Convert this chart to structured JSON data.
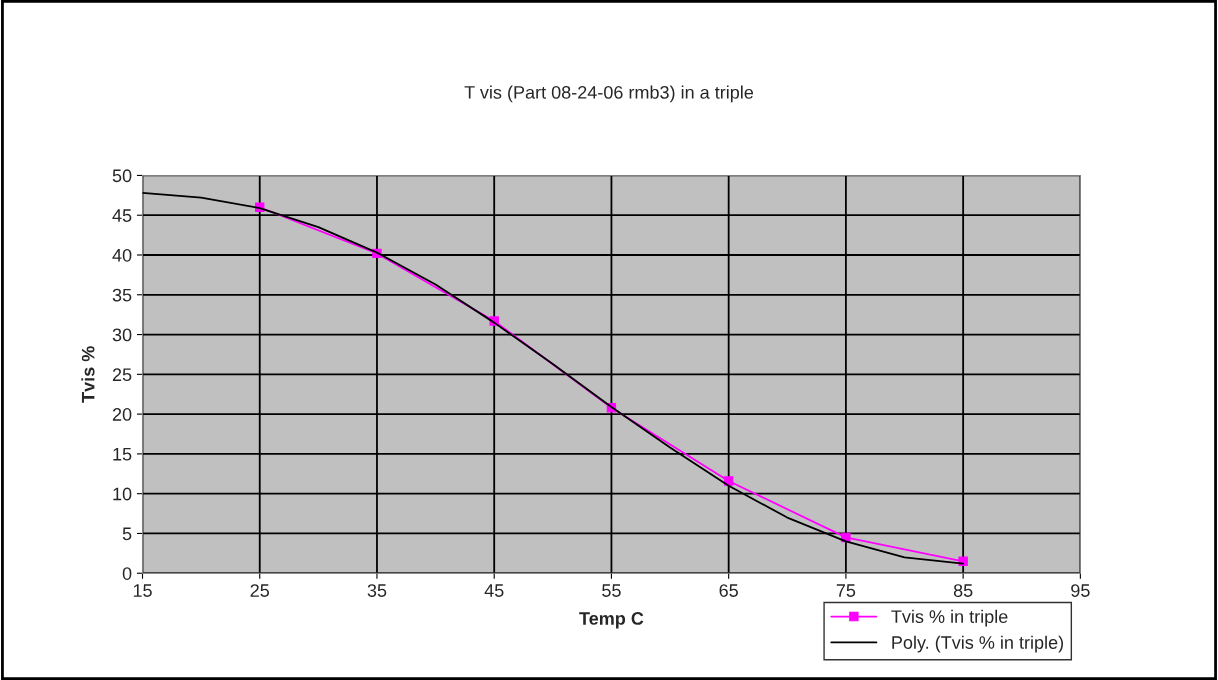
{
  "chart_data": {
    "type": "line",
    "title": "T vis (Part 08-24-06 rmb3) in a triple",
    "xlabel": "Temp C",
    "ylabel": "Tvis %",
    "series": [
      {
        "name": "Tvis % in triple",
        "color": "#ff00ff",
        "marker": "square",
        "x": [
          25,
          35,
          45,
          55,
          65,
          75,
          85
        ],
        "values": [
          46.0,
          40.2,
          31.7,
          20.8,
          11.6,
          4.5,
          1.5
        ]
      },
      {
        "name": "Poly. (Tvis % in triple)",
        "color": "#000000",
        "marker": "none",
        "x": [
          15,
          20,
          25,
          30,
          35,
          40,
          45,
          50,
          55,
          60,
          65,
          70,
          75,
          80,
          85
        ],
        "values": [
          47.8,
          47.2,
          45.9,
          43.5,
          40.3,
          36.3,
          31.5,
          26.3,
          20.9,
          15.8,
          11.0,
          7.0,
          4.0,
          2.0,
          1.2
        ]
      }
    ],
    "xlim": [
      15,
      95
    ],
    "xticks": [
      15,
      25,
      35,
      45,
      55,
      65,
      75,
      85,
      95
    ],
    "ylim": [
      0,
      50
    ],
    "yticks": [
      0,
      5,
      10,
      15,
      20,
      25,
      30,
      35,
      40,
      45,
      50
    ],
    "grid": true,
    "legend": "bottom right"
  }
}
